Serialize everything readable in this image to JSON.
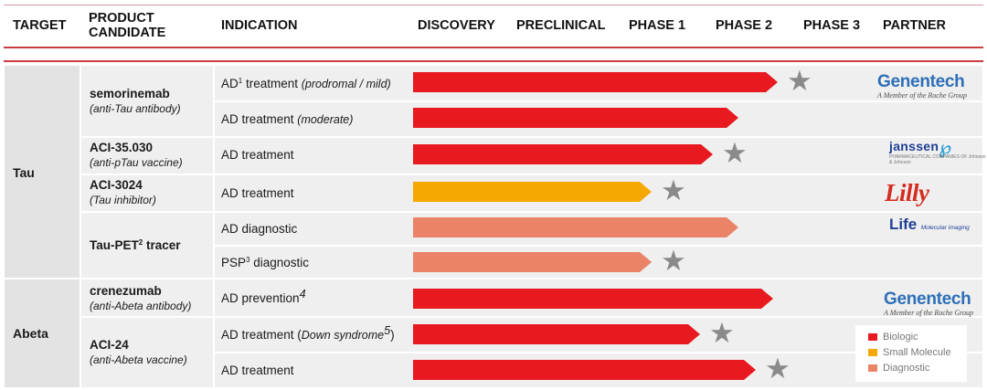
{
  "colors": {
    "biologic": "#e8191f",
    "small_molecule": "#f5a900",
    "diagnostic": "#ea8368",
    "star": "#8a8a8a",
    "accent_rule": "#cc3b3f"
  },
  "header": {
    "target": "TARGET",
    "product_line1": "PRODUCT",
    "product_line2": "CANDIDATE",
    "indication": "INDICATION",
    "phases": [
      "DISCOVERY",
      "PRECLINICAL",
      "PHASE 1",
      "PHASE 2",
      "PHASE 3"
    ],
    "partner": "PARTNER"
  },
  "targets": {
    "tau": "Tau",
    "abeta": "Abeta"
  },
  "products": [
    {
      "name": "semorinemab",
      "sup": "",
      "name_suffix": "",
      "subtitle": "(anti-Tau antibody)"
    },
    {
      "name": "ACI-35.030",
      "sup": "",
      "name_suffix": "",
      "subtitle": "(anti-pTau vaccine)"
    },
    {
      "name": "ACI-3024",
      "sup": "",
      "name_suffix": "",
      "subtitle": "(Tau inhibitor)"
    },
    {
      "name": "Tau-PET",
      "sup": "2",
      "name_suffix": " tracer",
      "subtitle": ""
    },
    {
      "name": "crenezumab",
      "sup": "",
      "name_suffix": "",
      "subtitle": "(anti-Abeta antibody)"
    },
    {
      "name": "ACI-24",
      "sup": "",
      "name_suffix": "",
      "subtitle": "(anti-Abeta vaccine)"
    }
  ],
  "chart_data": {
    "type": "bar",
    "orientation": "horizontal",
    "title": "",
    "categories": [
      "Discovery",
      "Preclinical",
      "Phase 1",
      "Phase 2",
      "Phase 3"
    ],
    "series": [
      {
        "product": "semorinemab",
        "indication": {
          "main": "AD",
          "sup": "1",
          "rest": " treatment ",
          "italic": "(prodromal / mild)",
          "tail": "",
          "tail_sup": ""
        },
        "category": "biologic",
        "value": 4.2,
        "star": true
      },
      {
        "product": "semorinemab",
        "indication": {
          "main": "AD treatment ",
          "sup": "",
          "rest": "",
          "italic": "(moderate)",
          "tail": "",
          "tail_sup": ""
        },
        "category": "biologic",
        "value": 3.75,
        "star": false
      },
      {
        "product": "ACI-35.030",
        "indication": {
          "main": "AD treatment",
          "sup": "",
          "rest": "",
          "italic": "",
          "tail": "",
          "tail_sup": ""
        },
        "category": "biologic",
        "value": 3.45,
        "star": true
      },
      {
        "product": "ACI-3024",
        "indication": {
          "main": "AD treatment",
          "sup": "",
          "rest": "",
          "italic": "",
          "tail": "",
          "tail_sup": ""
        },
        "category": "small_molecule",
        "value": 2.75,
        "star": true
      },
      {
        "product": "Tau-PET tracer",
        "indication": {
          "main": "AD diagnostic",
          "sup": "",
          "rest": "",
          "italic": "",
          "tail": "",
          "tail_sup": ""
        },
        "category": "diagnostic",
        "value": 3.75,
        "star": false
      },
      {
        "product": "Tau-PET tracer",
        "indication": {
          "main": "PSP",
          "sup": "3",
          "rest": " diagnostic",
          "italic": "",
          "tail": "",
          "tail_sup": ""
        },
        "category": "diagnostic",
        "value": 2.75,
        "star": true
      },
      {
        "product": "crenezumab",
        "indication": {
          "main": "AD prevention",
          "sup": "",
          "rest": "",
          "italic": "",
          "tail": "",
          "tail_sup": "4"
        },
        "category": "biologic",
        "value": 4.15,
        "star": false
      },
      {
        "product": "ACI-24",
        "indication": {
          "main": "AD treatment (",
          "sup": "",
          "rest": "",
          "italic": "Down syndrome",
          "tail": ")",
          "tail_sup": "5"
        },
        "category": "biologic",
        "value": 3.3,
        "star": true
      },
      {
        "product": "ACI-24",
        "indication": {
          "main": "AD treatment",
          "sup": "",
          "rest": "",
          "italic": "",
          "tail": "",
          "tail_sup": ""
        },
        "category": "biologic",
        "value": 3.95,
        "star": true
      }
    ]
  },
  "partners": {
    "genentech_1": {
      "name": "Genentech",
      "sub": "A Member of the Roche Group"
    },
    "janssen": {
      "name": "janssen",
      "sub": "PHARMACEUTICAL COMPANIES OF Johnson & Johnson"
    },
    "lilly": {
      "name": "Lilly"
    },
    "life": {
      "name": "Life",
      "sub": "Molecular Imaging"
    },
    "genentech_2": {
      "name": "Genentech",
      "sub": "A Member of the Roche Group"
    }
  },
  "legend": [
    {
      "label": "Biologic",
      "color": "#e8191f"
    },
    {
      "label": "Small Molecule",
      "color": "#f5a900"
    },
    {
      "label": "Diagnostic",
      "color": "#ea8368"
    }
  ]
}
